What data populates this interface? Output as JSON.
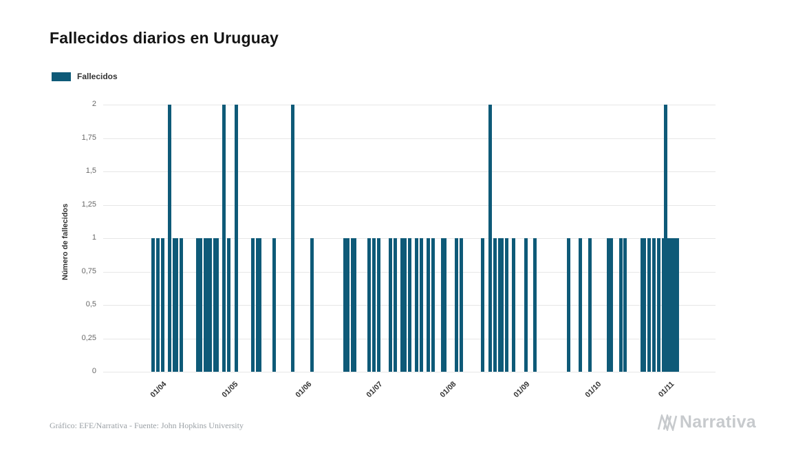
{
  "page": {
    "title": "Fallecidos diarios en Uruguay"
  },
  "legend": {
    "label": "Fallecidos"
  },
  "footer": {
    "credit": "Gráfico: EFE/Narrativa - Fuente: John Hopkins University",
    "brand": "Narrativa"
  },
  "chart_data": {
    "type": "bar",
    "title": "Fallecidos diarios en Uruguay",
    "ylabel": "Número de fallecidos",
    "xlabel": "",
    "ylim": [
      0,
      2
    ],
    "grid": "horizontal",
    "legend_position": "top-left",
    "bar_color": "#0e5a78",
    "date_format": "dd/mm",
    "x_domain": [
      "07/03",
      "20/11"
    ],
    "y_ticks": [
      {
        "v": 0,
        "label": "0"
      },
      {
        "v": 0.25,
        "label": "0,25"
      },
      {
        "v": 0.5,
        "label": "0,5"
      },
      {
        "v": 0.75,
        "label": "0,75"
      },
      {
        "v": 1,
        "label": "1"
      },
      {
        "v": 1.25,
        "label": "1,25"
      },
      {
        "v": 1.5,
        "label": "1,5"
      },
      {
        "v": 1.75,
        "label": "1,75"
      },
      {
        "v": 2,
        "label": "2"
      }
    ],
    "x_ticks": [
      {
        "d": "01/04",
        "label": "01/04"
      },
      {
        "d": "01/05",
        "label": "01/05"
      },
      {
        "d": "01/06",
        "label": "01/06"
      },
      {
        "d": "01/07",
        "label": "01/07"
      },
      {
        "d": "01/08",
        "label": "01/08"
      },
      {
        "d": "01/09",
        "label": "01/09"
      },
      {
        "d": "01/10",
        "label": "01/10"
      },
      {
        "d": "01/11",
        "label": "01/11"
      }
    ],
    "series": [
      {
        "name": "Fallecidos",
        "points": [
          {
            "d": "28/03",
            "v": 1
          },
          {
            "d": "30/03",
            "v": 1
          },
          {
            "d": "01/04",
            "v": 1
          },
          {
            "d": "04/04",
            "v": 2
          },
          {
            "d": "06/04",
            "v": 1
          },
          {
            "d": "07/04",
            "v": 1
          },
          {
            "d": "09/04",
            "v": 1
          },
          {
            "d": "16/04",
            "v": 1
          },
          {
            "d": "17/04",
            "v": 1
          },
          {
            "d": "19/04",
            "v": 1
          },
          {
            "d": "20/04",
            "v": 1
          },
          {
            "d": "21/04",
            "v": 1
          },
          {
            "d": "23/04",
            "v": 1
          },
          {
            "d": "24/04",
            "v": 1
          },
          {
            "d": "27/04",
            "v": 2
          },
          {
            "d": "29/04",
            "v": 1
          },
          {
            "d": "02/05",
            "v": 2
          },
          {
            "d": "09/05",
            "v": 1
          },
          {
            "d": "11/05",
            "v": 1
          },
          {
            "d": "12/05",
            "v": 1
          },
          {
            "d": "18/05",
            "v": 1
          },
          {
            "d": "26/05",
            "v": 2
          },
          {
            "d": "03/06",
            "v": 1
          },
          {
            "d": "17/06",
            "v": 1
          },
          {
            "d": "18/06",
            "v": 1
          },
          {
            "d": "20/06",
            "v": 1
          },
          {
            "d": "21/06",
            "v": 1
          },
          {
            "d": "27/06",
            "v": 1
          },
          {
            "d": "29/06",
            "v": 1
          },
          {
            "d": "01/07",
            "v": 1
          },
          {
            "d": "06/07",
            "v": 1
          },
          {
            "d": "08/07",
            "v": 1
          },
          {
            "d": "11/07",
            "v": 1
          },
          {
            "d": "12/07",
            "v": 1
          },
          {
            "d": "14/07",
            "v": 1
          },
          {
            "d": "17/07",
            "v": 1
          },
          {
            "d": "19/07",
            "v": 1
          },
          {
            "d": "22/07",
            "v": 1
          },
          {
            "d": "24/07",
            "v": 1
          },
          {
            "d": "28/07",
            "v": 1
          },
          {
            "d": "29/07",
            "v": 1
          },
          {
            "d": "03/08",
            "v": 1
          },
          {
            "d": "05/08",
            "v": 1
          },
          {
            "d": "14/08",
            "v": 1
          },
          {
            "d": "17/08",
            "v": 2
          },
          {
            "d": "19/08",
            "v": 1
          },
          {
            "d": "21/08",
            "v": 1
          },
          {
            "d": "22/08",
            "v": 1
          },
          {
            "d": "24/08",
            "v": 1
          },
          {
            "d": "27/08",
            "v": 1
          },
          {
            "d": "01/09",
            "v": 1
          },
          {
            "d": "05/09",
            "v": 1
          },
          {
            "d": "19/09",
            "v": 1
          },
          {
            "d": "24/09",
            "v": 1
          },
          {
            "d": "28/09",
            "v": 1
          },
          {
            "d": "06/10",
            "v": 1
          },
          {
            "d": "07/10",
            "v": 1
          },
          {
            "d": "11/10",
            "v": 1
          },
          {
            "d": "13/10",
            "v": 1
          },
          {
            "d": "20/10",
            "v": 1
          },
          {
            "d": "21/10",
            "v": 1
          },
          {
            "d": "23/10",
            "v": 1
          },
          {
            "d": "25/10",
            "v": 1
          },
          {
            "d": "27/10",
            "v": 1
          },
          {
            "d": "29/10",
            "v": 1
          },
          {
            "d": "30/10",
            "v": 2
          },
          {
            "d": "31/10",
            "v": 1
          },
          {
            "d": "01/11",
            "v": 1
          },
          {
            "d": "02/11",
            "v": 1
          },
          {
            "d": "03/11",
            "v": 1
          },
          {
            "d": "04/11",
            "v": 1
          }
        ]
      }
    ]
  }
}
